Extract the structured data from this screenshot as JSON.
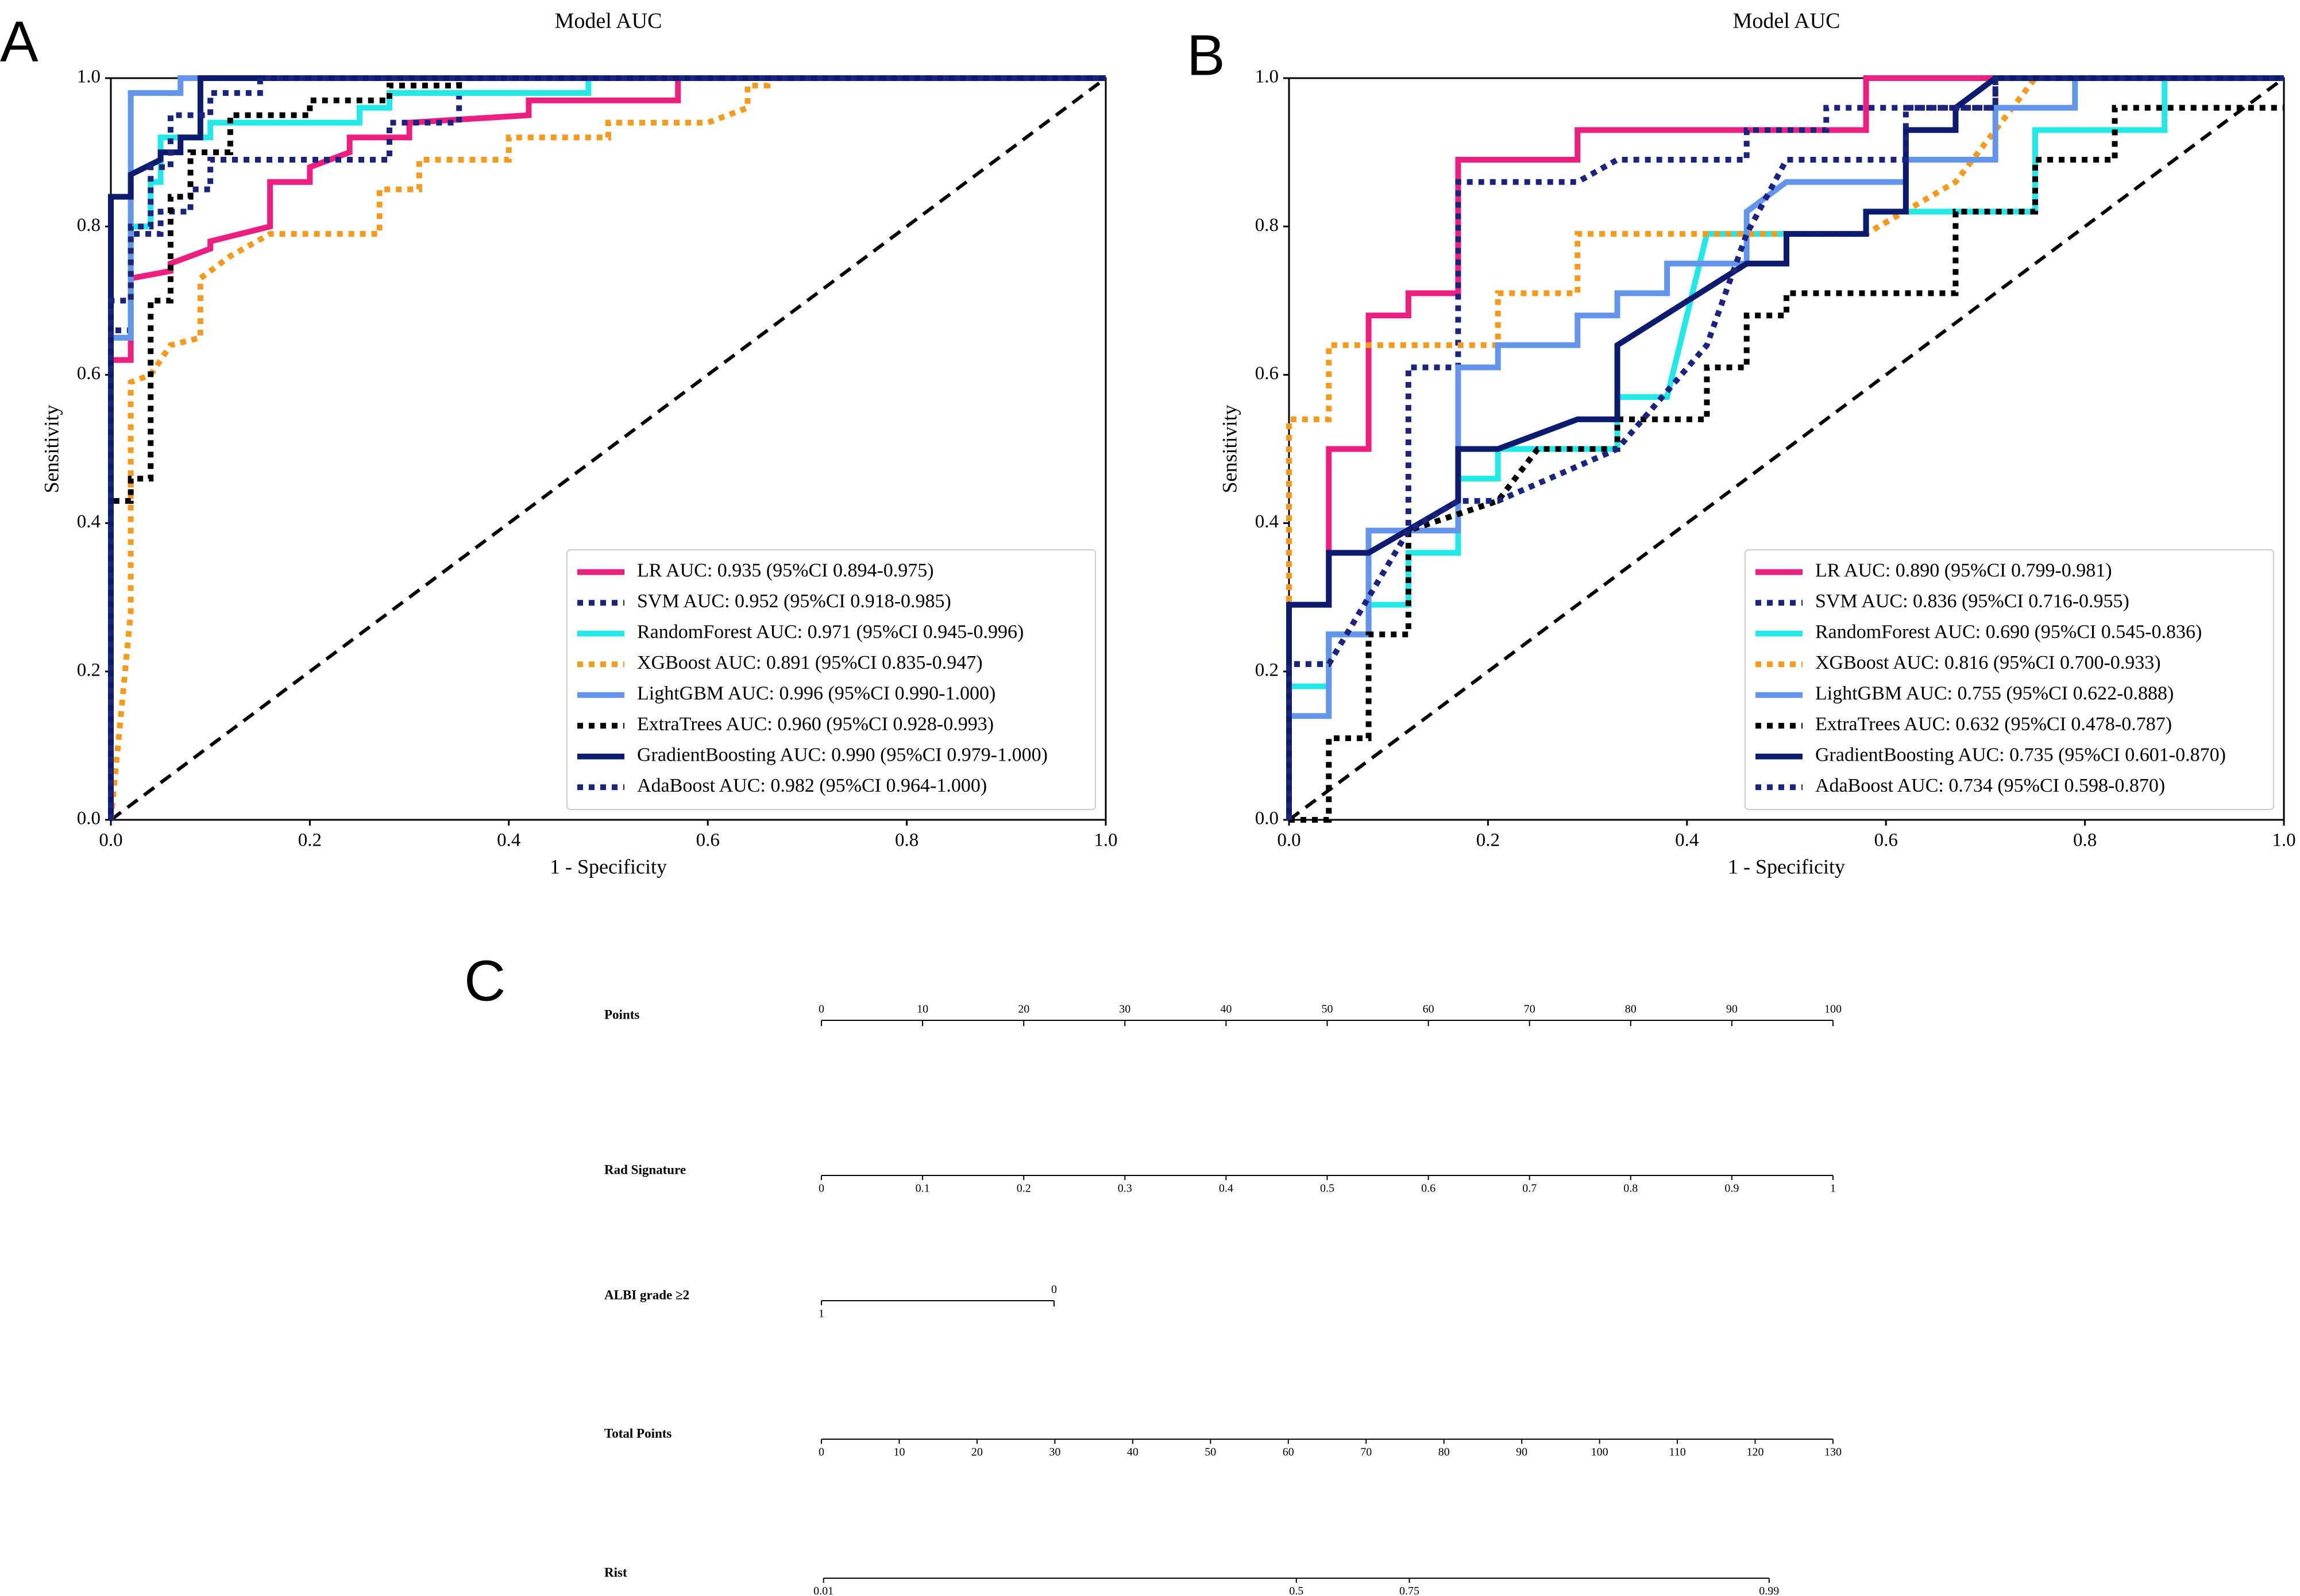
{
  "panels": [
    "A",
    "B",
    "C"
  ],
  "chart_data": [
    {
      "type": "line",
      "title": "Model AUC",
      "xlabel": "1 - Specificity",
      "ylabel": "Sensitivity",
      "xlim": [
        0,
        1
      ],
      "ylim": [
        0,
        1
      ],
      "xticks": [
        {
          "value": 0,
          "label": "0.0"
        },
        0.2,
        0.4,
        0.6,
        0.8,
        {
          "value": 1,
          "label": "1.0"
        }
      ],
      "yticks": [
        {
          "value": 0,
          "label": "0.0"
        },
        0.2,
        0.4,
        0.6,
        0.8,
        {
          "value": 1,
          "label": "1.0"
        }
      ],
      "legend": "lower right",
      "series": [
        {
          "name": "LR AUC: 0.935 (95%CI 0.894-0.975)",
          "color": "#ec1f80",
          "dash": "solid",
          "x": [
            0,
            0,
            0.02,
            0.02,
            0.06,
            0.06,
            0.1,
            0.1,
            0.16,
            0.16,
            0.2,
            0.2,
            0.24,
            0.24,
            0.3,
            0.3,
            0.42,
            0.42,
            0.57,
            0.57,
            1
          ],
          "values": [
            0,
            0.62,
            0.62,
            0.73,
            0.74,
            0.75,
            0.77,
            0.78,
            0.8,
            0.86,
            0.86,
            0.88,
            0.9,
            0.92,
            0.92,
            0.94,
            0.95,
            0.97,
            0.97,
            1,
            1
          ]
        },
        {
          "name": "SVM AUC: 0.952 (95%CI 0.918-0.985)",
          "color": "#1a237e",
          "dash": "dotted",
          "x": [
            0,
            0,
            0.02,
            0.02,
            0.05,
            0.05,
            0.08,
            0.08,
            0.1,
            0.1,
            0.28,
            0.28,
            0.35,
            0.35,
            1
          ],
          "values": [
            0,
            0.66,
            0.66,
            0.79,
            0.79,
            0.82,
            0.82,
            0.85,
            0.85,
            0.89,
            0.89,
            0.94,
            0.94,
            1,
            1
          ]
        },
        {
          "name": "RandomForest AUC: 0.971 (95%CI 0.945-0.996)",
          "color": "#22e8e8",
          "dash": "solid",
          "x": [
            0,
            0,
            0.02,
            0.02,
            0.04,
            0.04,
            0.05,
            0.05,
            0.1,
            0.1,
            0.25,
            0.25,
            0.28,
            0.28,
            0.48,
            0.48,
            1
          ],
          "values": [
            0,
            0.65,
            0.65,
            0.8,
            0.8,
            0.86,
            0.86,
            0.92,
            0.92,
            0.94,
            0.94,
            0.96,
            0.96,
            0.98,
            0.98,
            1,
            1
          ]
        },
        {
          "name": "XGBoost AUC: 0.891 (95%CI 0.835-0.947)",
          "color": "#f59a1c",
          "dash": "dotted",
          "x": [
            0,
            0.02,
            0.02,
            0.04,
            0.06,
            0.09,
            0.09,
            0.12,
            0.16,
            0.27,
            0.27,
            0.31,
            0.31,
            0.4,
            0.4,
            0.5,
            0.5,
            0.6,
            0.64,
            0.64,
            0.66,
            0.66,
            1
          ],
          "values": [
            0,
            0.28,
            0.59,
            0.6,
            0.64,
            0.65,
            0.73,
            0.76,
            0.79,
            0.79,
            0.85,
            0.85,
            0.89,
            0.89,
            0.92,
            0.92,
            0.94,
            0.94,
            0.96,
            0.99,
            0.99,
            1,
            1
          ]
        },
        {
          "name": "LightGBM AUC: 0.996 (95%CI 0.990-1.000)",
          "color": "#6495ed",
          "dash": "solid",
          "x": [
            0,
            0,
            0.02,
            0.02,
            0.07,
            0.07,
            1
          ],
          "values": [
            0,
            0.65,
            0.65,
            0.98,
            0.98,
            1,
            1
          ]
        },
        {
          "name": "ExtraTrees AUC: 0.960 (95%CI 0.928-0.993)",
          "color": "#000000",
          "dash": "dotted",
          "x": [
            0,
            0,
            0.02,
            0.02,
            0.04,
            0.04,
            0.06,
            0.06,
            0.08,
            0.08,
            0.12,
            0.12,
            0.2,
            0.2,
            0.28,
            0.28,
            0.35,
            0.35,
            1
          ],
          "values": [
            0,
            0.43,
            0.43,
            0.46,
            0.46,
            0.7,
            0.7,
            0.84,
            0.84,
            0.9,
            0.9,
            0.95,
            0.95,
            0.97,
            0.97,
            0.99,
            0.99,
            1,
            1
          ]
        },
        {
          "name": "GradientBoosting AUC: 0.990 (95%CI 0.979-1.000)",
          "color": "#0d1b6e",
          "dash": "solid",
          "x": [
            0,
            0,
            0.02,
            0.02,
            0.05,
            0.05,
            0.07,
            0.07,
            0.09,
            0.09,
            1
          ],
          "values": [
            0,
            0.84,
            0.84,
            0.87,
            0.89,
            0.9,
            0.9,
            0.92,
            0.92,
            1,
            1
          ]
        },
        {
          "name": "AdaBoost AUC: 0.982 (95%CI 0.964-1.000)",
          "color": "#1a237e",
          "dash": "dotted",
          "x": [
            0,
            0,
            0.02,
            0.02,
            0.04,
            0.04,
            0.06,
            0.06,
            0.1,
            0.1,
            0.15,
            0.15,
            1
          ],
          "values": [
            0,
            0.7,
            0.7,
            0.8,
            0.8,
            0.88,
            0.88,
            0.95,
            0.95,
            0.98,
            0.98,
            1,
            1
          ]
        }
      ]
    },
    {
      "type": "line",
      "title": "Model AUC",
      "xlabel": "1 - Specificity",
      "ylabel": "Sensitivity",
      "xlim": [
        0,
        1
      ],
      "ylim": [
        0,
        1
      ],
      "xticks": [
        {
          "value": 0,
          "label": "0.0"
        },
        0.2,
        0.4,
        0.6,
        0.8,
        {
          "value": 1,
          "label": "1.0"
        }
      ],
      "yticks": [
        {
          "value": 0,
          "label": "0.0"
        },
        0.2,
        0.4,
        0.6,
        0.8,
        {
          "value": 1,
          "label": "1.0"
        }
      ],
      "legend": "lower right",
      "series": [
        {
          "name": "LR AUC: 0.890 (95%CI 0.799-0.981)",
          "color": "#ec1f80",
          "dash": "solid",
          "x": [
            0,
            0,
            0.04,
            0.04,
            0.08,
            0.08,
            0.12,
            0.12,
            0.17,
            0.17,
            0.29,
            0.29,
            0.58,
            0.58,
            1
          ],
          "values": [
            0,
            0.29,
            0.29,
            0.5,
            0.5,
            0.68,
            0.68,
            0.71,
            0.71,
            0.89,
            0.89,
            0.93,
            0.93,
            1,
            1
          ]
        },
        {
          "name": "SVM AUC: 0.836 (95%CI 0.716-0.955)",
          "color": "#1a237e",
          "dash": "dotted",
          "x": [
            0,
            0,
            0.04,
            0.04,
            0.08,
            0.08,
            0.12,
            0.12,
            0.17,
            0.17,
            0.29,
            0.33,
            0.46,
            0.46,
            0.54,
            0.54,
            0.71,
            0.71,
            1
          ],
          "values": [
            0,
            0.21,
            0.21,
            0.25,
            0.25,
            0.39,
            0.39,
            0.61,
            0.61,
            0.86,
            0.86,
            0.89,
            0.89,
            0.93,
            0.93,
            0.96,
            0.96,
            1,
            1
          ]
        },
        {
          "name": "RandomForest AUC: 0.690 (95%CI 0.545-0.836)",
          "color": "#22e8e8",
          "dash": "solid",
          "x": [
            0,
            0,
            0.04,
            0.04,
            0.08,
            0.08,
            0.12,
            0.12,
            0.17,
            0.17,
            0.21,
            0.21,
            0.33,
            0.33,
            0.38,
            0.42,
            0.58,
            0.58,
            0.75,
            0.75,
            0.88,
            0.88,
            1
          ],
          "values": [
            0,
            0.18,
            0.18,
            0.25,
            0.25,
            0.29,
            0.29,
            0.36,
            0.36,
            0.46,
            0.46,
            0.5,
            0.5,
            0.57,
            0.57,
            0.79,
            0.79,
            0.82,
            0.82,
            0.93,
            0.93,
            1,
            1
          ]
        },
        {
          "name": "XGBoost AUC: 0.816 (95%CI 0.700-0.933)",
          "color": "#f59a1c",
          "dash": "dotted",
          "x": [
            0,
            0,
            0.04,
            0.04,
            0.21,
            0.21,
            0.29,
            0.29,
            0.58,
            0.67,
            0.75,
            1
          ],
          "values": [
            0,
            0.54,
            0.54,
            0.64,
            0.64,
            0.71,
            0.71,
            0.79,
            0.79,
            0.86,
            1,
            1
          ]
        },
        {
          "name": "LightGBM AUC: 0.755 (95%CI 0.622-0.888)",
          "color": "#6495ed",
          "dash": "solid",
          "x": [
            0,
            0,
            0.04,
            0.04,
            0.08,
            0.08,
            0.17,
            0.17,
            0.21,
            0.21,
            0.29,
            0.29,
            0.33,
            0.33,
            0.38,
            0.38,
            0.46,
            0.46,
            0.5,
            0.62,
            0.62,
            0.71,
            0.71,
            0.79,
            0.79,
            1
          ],
          "values": [
            0,
            0.14,
            0.14,
            0.25,
            0.25,
            0.39,
            0.39,
            0.61,
            0.61,
            0.64,
            0.64,
            0.68,
            0.68,
            0.71,
            0.71,
            0.75,
            0.75,
            0.82,
            0.86,
            0.86,
            0.89,
            0.89,
            0.96,
            0.96,
            1,
            1
          ]
        },
        {
          "name": "ExtraTrees AUC: 0.632 (95%CI 0.478-0.787)",
          "color": "#000000",
          "dash": "dotted",
          "x": [
            0,
            0.04,
            0.04,
            0.08,
            0.08,
            0.12,
            0.12,
            0.21,
            0.25,
            0.33,
            0.33,
            0.42,
            0.42,
            0.46,
            0.46,
            0.5,
            0.5,
            0.67,
            0.67,
            0.75,
            0.75,
            0.83,
            0.83,
            1
          ],
          "values": [
            0,
            0,
            0.11,
            0.11,
            0.25,
            0.25,
            0.39,
            0.43,
            0.5,
            0.5,
            0.54,
            0.54,
            0.61,
            0.61,
            0.68,
            0.68,
            0.71,
            0.71,
            0.82,
            0.82,
            0.89,
            0.89,
            0.96,
            0.96
          ]
        },
        {
          "name": "GradientBoosting AUC: 0.735 (95%CI 0.601-0.870)",
          "color": "#0d1b6e",
          "dash": "solid",
          "x": [
            0,
            0,
            0.04,
            0.04,
            0.08,
            0.17,
            0.17,
            0.21,
            0.29,
            0.33,
            0.33,
            0.46,
            0.5,
            0.5,
            0.58,
            0.58,
            0.62,
            0.62,
            0.67,
            0.67,
            0.71,
            1
          ],
          "values": [
            0,
            0.29,
            0.29,
            0.36,
            0.36,
            0.43,
            0.5,
            0.5,
            0.54,
            0.54,
            0.64,
            0.75,
            0.75,
            0.79,
            0.79,
            0.82,
            0.82,
            0.93,
            0.93,
            0.96,
            1,
            1
          ]
        },
        {
          "name": "AdaBoost AUC: 0.734 (95%CI 0.598-0.870)",
          "color": "#1a237e",
          "dash": "dotted",
          "x": [
            0,
            0,
            0.04,
            0.12,
            0.17,
            0.21,
            0.33,
            0.42,
            0.46,
            0.5,
            0.62,
            0.62,
            0.71,
            0.71,
            1
          ],
          "values": [
            0,
            0.21,
            0.21,
            0.39,
            0.43,
            0.43,
            0.5,
            0.64,
            0.79,
            0.89,
            0.89,
            0.96,
            0.96,
            1,
            1
          ]
        }
      ]
    }
  ],
  "nomogram": {
    "rows": [
      {
        "label": "Points",
        "lim": [
          0,
          100
        ],
        "ticks": [
          0,
          10,
          20,
          30,
          40,
          50,
          60,
          70,
          80,
          90,
          100
        ]
      },
      {
        "label": "Rad Signature",
        "lim": [
          0,
          1
        ],
        "points": [
          0,
          100
        ],
        "ticks": [
          0,
          0.1,
          0.2,
          0.3,
          0.4,
          0.5,
          0.6,
          0.7,
          0.8,
          0.9,
          1
        ]
      },
      {
        "label": "ALBI grade ≥2",
        "lim": [
          1,
          0
        ],
        "points": [
          0,
          23
        ],
        "ticks": [
          1,
          0
        ]
      },
      {
        "label": "Total Points",
        "lim": [
          0,
          130
        ],
        "ticks": [
          0,
          10,
          20,
          30,
          40,
          50,
          60,
          70,
          80,
          90,
          100,
          110,
          120,
          130
        ]
      },
      {
        "label": "Rist",
        "lim": [
          0.0098,
          0.9946
        ],
        "scale": "logit",
        "ticks": [
          0.01,
          0.5,
          0.75,
          0.99
        ]
      }
    ]
  }
}
